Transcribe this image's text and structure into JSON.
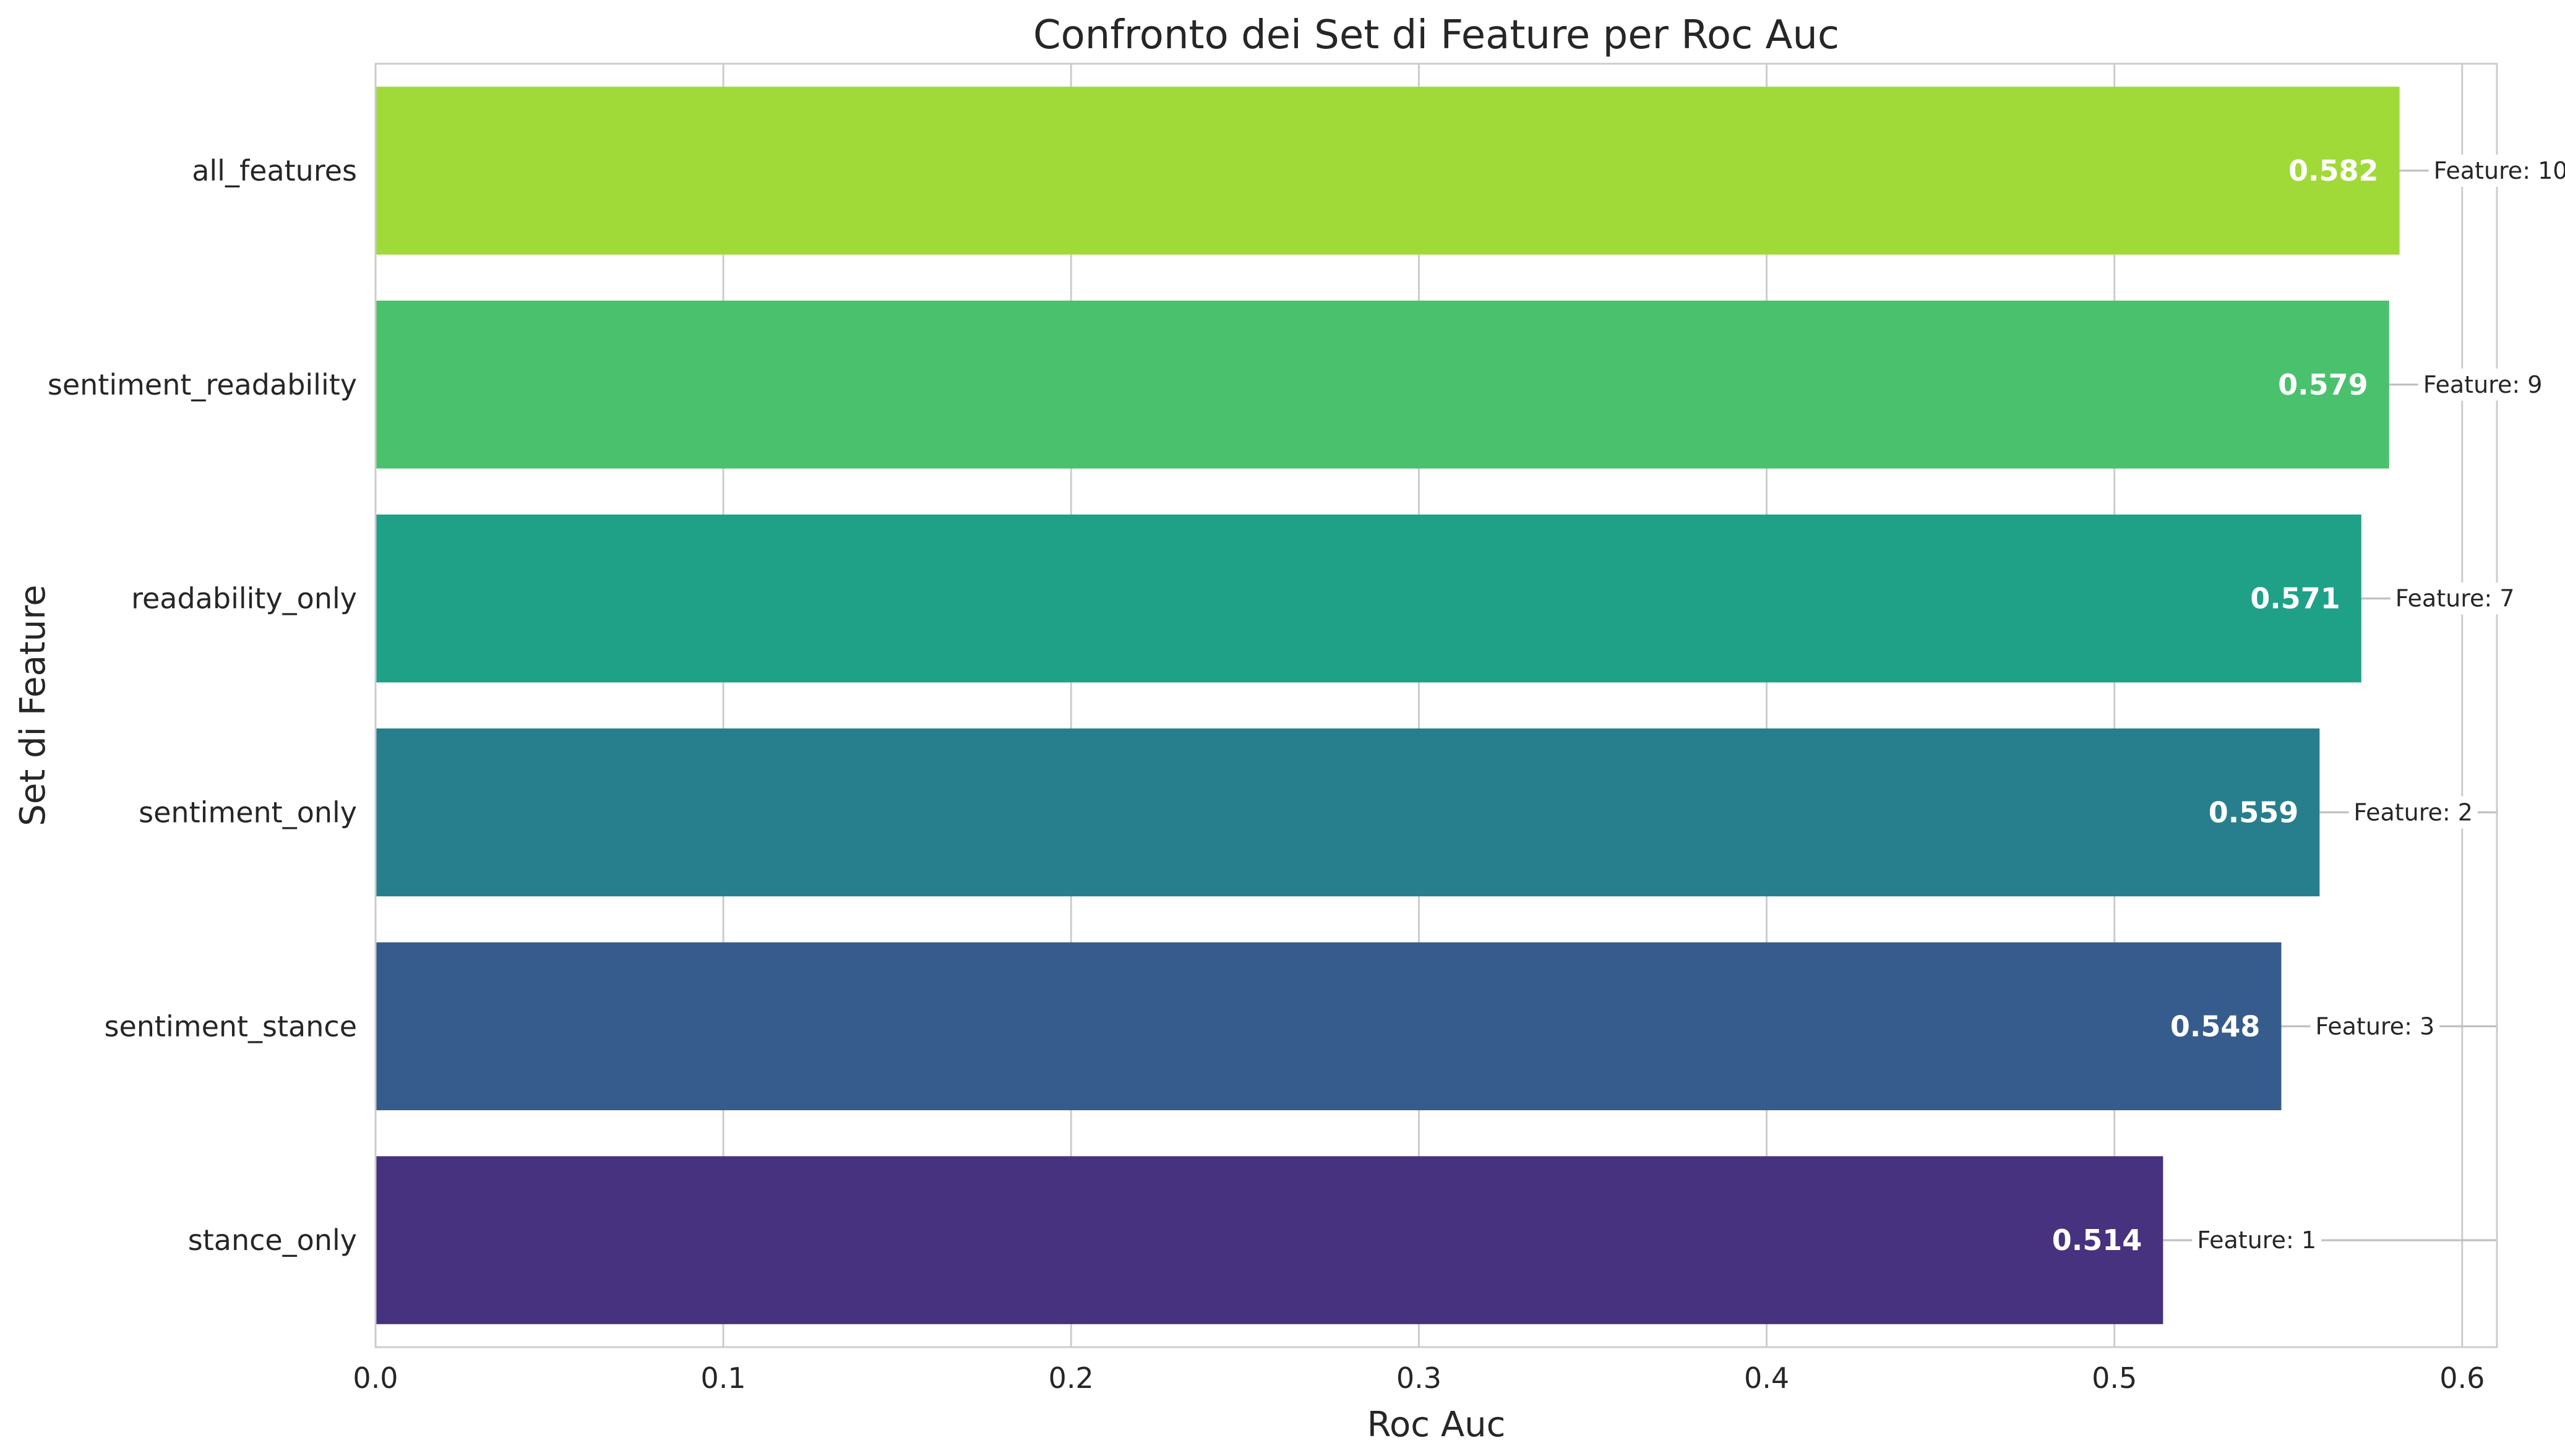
{
  "chart_data": {
    "type": "bar",
    "orientation": "horizontal",
    "title": "Confronto dei Set di Feature per Roc Auc",
    "xlabel": "Roc Auc",
    "ylabel": "Set di Feature",
    "xlim": [
      0.0,
      0.61
    ],
    "xticks": [
      "0.0",
      "0.1",
      "0.2",
      "0.3",
      "0.4",
      "0.5",
      "0.6"
    ],
    "grid": true,
    "legend": "none",
    "count_prefix": "Feature: ",
    "categories": [
      "all_features",
      "sentiment_readability",
      "readability_only",
      "sentiment_only",
      "sentiment_stance",
      "stance_only"
    ],
    "values": [
      0.582,
      0.579,
      0.571,
      0.559,
      0.548,
      0.514
    ],
    "value_labels": [
      "0.582",
      "0.579",
      "0.571",
      "0.559",
      "0.548",
      "0.514"
    ],
    "feature_counts": [
      10,
      9,
      7,
      2,
      3,
      1
    ],
    "colors": [
      "#a0da39",
      "#4ac16d",
      "#1fa187",
      "#277f8e",
      "#365c8d",
      "#46327e"
    ]
  }
}
